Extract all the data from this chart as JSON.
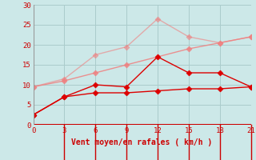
{
  "x": [
    0,
    3,
    6,
    9,
    12,
    15,
    18,
    21
  ],
  "line1": [
    9.5,
    11.5,
    17.5,
    19.5,
    26.5,
    22.0,
    20.5,
    22.0
  ],
  "line2": [
    9.5,
    11.0,
    13.0,
    15.0,
    17.0,
    19.0,
    20.5,
    22.0
  ],
  "line3": [
    2.5,
    7.0,
    10.0,
    9.5,
    17.0,
    13.0,
    13.0,
    9.5
  ],
  "line4": [
    2.5,
    7.0,
    8.0,
    8.0,
    8.5,
    9.0,
    9.0,
    9.5
  ],
  "color1": "#f08080",
  "color2": "#f08080",
  "color3": "#dd0000",
  "color4": "#dd0000",
  "color1_alpha": 0.6,
  "color2_alpha": 0.85,
  "color3_alpha": 1.0,
  "color4_alpha": 1.0,
  "bg_color": "#cce8e8",
  "grid_color": "#aacccc",
  "axis_color": "#cc0000",
  "text_color": "#cc0000",
  "xlabel": "Vent moyen/en rafales ( km/h )",
  "ylim": [
    0,
    30
  ],
  "xlim": [
    0,
    21
  ],
  "yticks": [
    0,
    5,
    10,
    15,
    20,
    25,
    30
  ],
  "xticks": [
    0,
    3,
    6,
    9,
    12,
    15,
    18,
    21
  ]
}
